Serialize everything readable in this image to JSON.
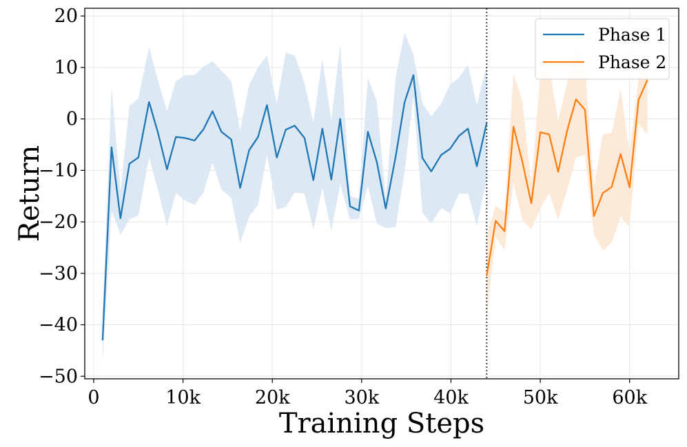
{
  "chart_data": {
    "type": "line",
    "xlabel": "Training Steps",
    "ylabel": "Return",
    "xlim": [
      -1000,
      65500
    ],
    "ylim": [
      -50.5,
      21.5
    ],
    "xticks": [
      {
        "value": 0,
        "label": "0"
      },
      {
        "value": 10000,
        "label": "10k"
      },
      {
        "value": 20000,
        "label": "20k"
      },
      {
        "value": 30000,
        "label": "30k"
      },
      {
        "value": 40000,
        "label": "40k"
      },
      {
        "value": 50000,
        "label": "50k"
      },
      {
        "value": 60000,
        "label": "60k"
      }
    ],
    "yticks": [
      {
        "value": 20,
        "label": "20"
      },
      {
        "value": 10,
        "label": "10"
      },
      {
        "value": 0,
        "label": "0"
      },
      {
        "value": -10,
        "label": "−10"
      },
      {
        "value": -20,
        "label": "−20"
      },
      {
        "value": -30,
        "label": "−30"
      },
      {
        "value": -40,
        "label": "−40"
      },
      {
        "value": -50,
        "label": "−50"
      }
    ],
    "grid": true,
    "vline": {
      "x": 44000,
      "style": "dotted",
      "color": "#444444"
    },
    "legend": {
      "position": "top-right",
      "entries": [
        "Phase 1",
        "Phase 2"
      ]
    },
    "series": [
      {
        "name": "Phase 1",
        "color": "#1f77b4",
        "fill": "#dce8f4",
        "x": [
          1000,
          2000,
          3000,
          4000,
          5000,
          6200,
          7200,
          8200,
          9200,
          10200,
          11300,
          12300,
          13300,
          14300,
          15400,
          16400,
          17400,
          18400,
          19400,
          20500,
          21500,
          22500,
          23600,
          24600,
          25600,
          26600,
          27600,
          28700,
          29700,
          30700,
          31700,
          32700,
          33800,
          34800,
          35800,
          36800,
          37800,
          38900,
          39900,
          40900,
          41900,
          42900,
          44000
        ],
        "y": [
          -43.0,
          -5.5,
          -19.3,
          -8.7,
          -7.5,
          3.3,
          -2.7,
          -9.8,
          -3.5,
          -3.7,
          -4.2,
          -2.0,
          1.5,
          -2.5,
          -4.0,
          -13.4,
          -6.1,
          -3.5,
          2.7,
          -7.5,
          -2.1,
          -1.3,
          -3.7,
          -11.9,
          -1.9,
          -11.8,
          0.0,
          -17.0,
          -17.8,
          -2.5,
          -8.4,
          -17.4,
          -7.4,
          3.2,
          8.5,
          -7.6,
          -10.2,
          -7.0,
          -5.8,
          -3.3,
          -1.9,
          -9.2,
          -0.8
        ],
        "upper": [
          -38.0,
          6.2,
          -14.0,
          2.5,
          4.0,
          14.0,
          7.5,
          1.5,
          7.3,
          8.5,
          8.5,
          10.2,
          11.2,
          9.4,
          7.4,
          -2.2,
          6.5,
          10.0,
          12.3,
          3.0,
          12.9,
          12.3,
          7.0,
          -0.8,
          11.7,
          -0.3,
          14.5,
          -15.0,
          -15.5,
          7.9,
          3.5,
          -15.6,
          8.0,
          16.8,
          12.5,
          3.0,
          0.5,
          3.0,
          6.7,
          8.0,
          10.5,
          2.7,
          10.5
        ],
        "lower": [
          -47.3,
          -17.8,
          -22.5,
          -19.5,
          -18.8,
          -7.5,
          -13.8,
          -20.8,
          -14.4,
          -15.8,
          -16.7,
          -14.3,
          -8.5,
          -13.7,
          -15.4,
          -24.1,
          -19.0,
          -16.7,
          -7.0,
          -17.6,
          -17.1,
          -14.3,
          -14.5,
          -21.5,
          -13.4,
          -21.8,
          -12.7,
          -19.5,
          -19.5,
          -13.0,
          -20.3,
          -21.2,
          -21.0,
          -10.3,
          4.4,
          -18.3,
          -20.3,
          -17.3,
          -18.4,
          -14.5,
          -14.5,
          -20.8,
          -11.7
        ]
      },
      {
        "name": "Phase 2",
        "color": "#ff7f0e",
        "fill": "#fde9d8",
        "x": [
          44000,
          45000,
          46000,
          47000,
          48000,
          49000,
          50000,
          51000,
          52000,
          53000,
          54000,
          55000,
          56000,
          57000,
          58000,
          59000,
          60000,
          61000,
          62000
        ],
        "y": [
          -30.5,
          -19.8,
          -21.8,
          -1.5,
          -8.4,
          -16.4,
          -2.6,
          -3.0,
          -10.3,
          -2.3,
          3.8,
          1.8,
          -18.9,
          -14.4,
          -13.2,
          -6.8,
          -13.3,
          3.7,
          7.6
        ],
        "upper": [
          -22.5,
          -16.9,
          -18.1,
          8.8,
          3.4,
          -12.8,
          8.6,
          10.3,
          -0.5,
          7.0,
          15.0,
          10.5,
          -13.3,
          -3.0,
          -2.7,
          5.8,
          -6.5,
          8.1,
          11.5
        ],
        "lower": [
          -38.5,
          -23.0,
          -25.4,
          -12.5,
          -19.7,
          -21.5,
          -17.4,
          -14.5,
          -19.6,
          -13.8,
          -7.5,
          -7.0,
          -22.5,
          -25.5,
          -24.0,
          -19.0,
          -21.0,
          -1.0,
          -3.0
        ]
      }
    ]
  }
}
